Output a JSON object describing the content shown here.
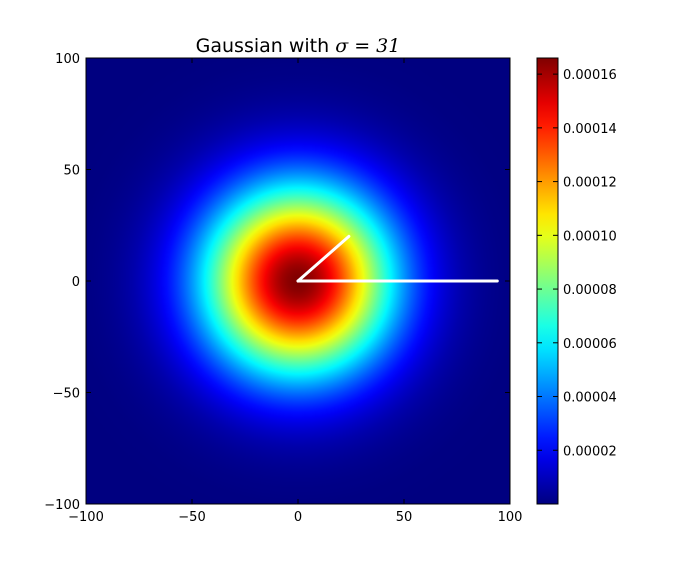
{
  "chart_data": {
    "type": "heatmap",
    "title_text": "Gaussian with ",
    "title_math": "σ = 31",
    "sigma": 31,
    "x_ticks": [
      "−100",
      "−50",
      "0",
      "50",
      "100"
    ],
    "y_ticks": [
      "100",
      "50",
      "0",
      "−50",
      "−100"
    ],
    "xlim": [
      -100,
      100
    ],
    "ylim": [
      -100,
      100
    ],
    "colormap": "jet",
    "colorbar": {
      "range": [
        0,
        0.000166
      ],
      "ticks": [
        "0.00002",
        "0.00004",
        "0.00006",
        "0.00008",
        "0.00010",
        "0.00012",
        "0.00014",
        "0.00016"
      ],
      "tick_values": [
        2e-05,
        4e-05,
        6e-05,
        8e-05,
        0.0001,
        0.00012,
        0.00014,
        0.00016
      ]
    },
    "overlay_lines": [
      {
        "from": [
          0,
          0
        ],
        "to": [
          24,
          20
        ],
        "color": "#ffffff"
      },
      {
        "from": [
          0,
          0
        ],
        "to": [
          94,
          0
        ],
        "color": "#ffffff"
      }
    ]
  }
}
